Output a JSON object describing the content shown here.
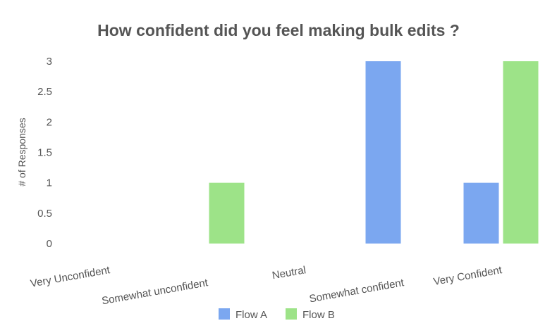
{
  "chart_data": {
    "type": "bar",
    "title": "How confident did you feel making bulk edits ?",
    "xlabel": "",
    "ylabel": "# of Responses",
    "categories": [
      "Very Unconfident",
      "Somewhat unconfident",
      "Neutral",
      "Somewhat confident",
      "Very Confident"
    ],
    "series": [
      {
        "name": "Flow A",
        "color": "#7ba7f0",
        "values": [
          0,
          0,
          0,
          3,
          1
        ]
      },
      {
        "name": "Flow B",
        "color": "#9de388",
        "values": [
          0,
          1,
          0,
          0,
          3
        ]
      }
    ],
    "ylim": [
      0,
      3
    ],
    "yticks": [
      "0",
      "0.5",
      "1",
      "1.5",
      "2",
      "2.5",
      "3"
    ],
    "grid": false,
    "legend_position": "bottom"
  }
}
